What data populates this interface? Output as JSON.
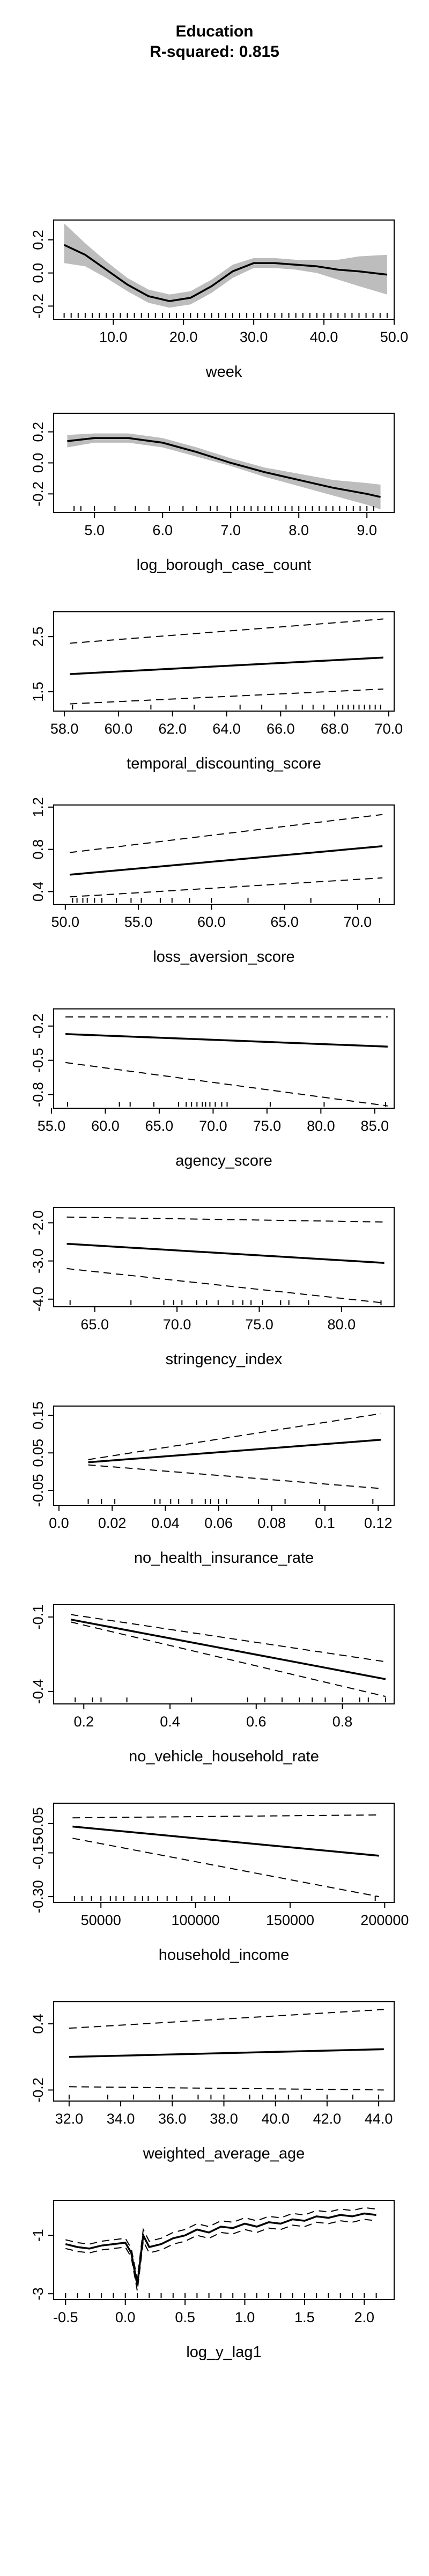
{
  "title": "Education",
  "subtitle": "R-squared: 0.815",
  "chart_data": [
    {
      "type": "line",
      "xlabel": "week",
      "xlim": [
        1.5,
        50
      ],
      "ylim": [
        -0.28,
        0.32
      ],
      "xticks": [
        10,
        20,
        30,
        40,
        50
      ],
      "yticks": [
        -0.2,
        0,
        0.2
      ],
      "yticklabels": [
        "-0.2",
        "0.0",
        "0.2"
      ],
      "band": "shaded",
      "x": [
        3,
        6,
        9,
        12,
        15,
        18,
        21,
        24,
        27,
        30,
        33,
        36,
        39,
        42,
        45,
        49
      ],
      "y": [
        0.17,
        0.11,
        0.02,
        -0.07,
        -0.14,
        -0.17,
        -0.15,
        -0.08,
        0.01,
        0.06,
        0.06,
        0.05,
        0.04,
        0.02,
        0.01,
        -0.01
      ],
      "lower": [
        0.06,
        0.04,
        -0.03,
        -0.11,
        -0.18,
        -0.21,
        -0.19,
        -0.12,
        -0.03,
        0.03,
        0.03,
        0.02,
        0.0,
        -0.04,
        -0.08,
        -0.13
      ],
      "upper": [
        0.3,
        0.18,
        0.07,
        -0.03,
        -0.1,
        -0.13,
        -0.11,
        -0.04,
        0.05,
        0.09,
        0.09,
        0.08,
        0.08,
        0.08,
        0.1,
        0.11
      ],
      "rug": [
        3,
        4,
        5,
        6,
        7,
        8,
        9,
        10,
        11,
        12,
        13,
        14,
        15,
        16,
        17,
        18,
        19,
        20,
        21,
        22,
        23,
        24,
        25,
        26,
        27,
        28,
        29,
        30,
        31,
        32,
        33,
        34,
        35,
        36,
        37,
        38,
        39,
        40,
        41,
        42,
        43,
        44,
        45,
        46,
        47,
        48,
        49
      ]
    },
    {
      "type": "line",
      "xlabel": "log_borough_case_count",
      "xlim": [
        4.4,
        9.4
      ],
      "ylim": [
        -0.32,
        0.32
      ],
      "xticks": [
        5,
        6,
        7,
        8,
        9
      ],
      "yticks": [
        -0.2,
        0,
        0.2
      ],
      "yticklabels": [
        "-0.2",
        "0.0",
        "0.2"
      ],
      "band": "shaded",
      "x": [
        4.6,
        5.0,
        5.5,
        6.0,
        6.5,
        7.0,
        7.5,
        8.0,
        8.5,
        9.0,
        9.2
      ],
      "y": [
        0.14,
        0.16,
        0.16,
        0.13,
        0.07,
        0.0,
        -0.06,
        -0.11,
        -0.16,
        -0.2,
        -0.22
      ],
      "lower": [
        0.1,
        0.13,
        0.13,
        0.1,
        0.04,
        -0.02,
        -0.09,
        -0.15,
        -0.21,
        -0.27,
        -0.3
      ],
      "upper": [
        0.18,
        0.19,
        0.19,
        0.16,
        0.1,
        0.03,
        -0.03,
        -0.07,
        -0.11,
        -0.13,
        -0.14
      ],
      "rug": [
        4.7,
        4.8,
        5.0,
        5.3,
        5.6,
        5.8,
        6.1,
        6.3,
        6.5,
        6.7,
        6.8,
        7.0,
        7.1,
        7.2,
        7.3,
        7.4,
        7.5,
        7.6,
        7.7,
        7.8,
        7.9,
        8.0,
        8.1,
        8.2,
        8.3,
        8.4,
        8.5,
        8.6,
        8.7,
        8.8,
        8.9,
        9.0,
        9.1
      ]
    },
    {
      "type": "line",
      "xlabel": "temporal_discounting_score",
      "xlim": [
        57.6,
        70.2
      ],
      "ylim": [
        1.15,
        2.95
      ],
      "xticks": [
        58,
        60,
        62,
        64,
        66,
        68,
        70
      ],
      "yticks": [
        1.5,
        2.5
      ],
      "yticklabels": [
        "1.5",
        "2.5"
      ],
      "band": "dashed",
      "x": [
        58.2,
        69.8
      ],
      "y": [
        1.82,
        2.12
      ],
      "lower": [
        1.28,
        1.55
      ],
      "upper": [
        2.38,
        2.82
      ],
      "rug": [
        58.3,
        61.2,
        62.8,
        64.5,
        65.3,
        66.2,
        66.8,
        67.2,
        67.6,
        68.1,
        68.3,
        68.5,
        68.7,
        68.9,
        69.1,
        69.3,
        69.5,
        69.7
      ]
    },
    {
      "type": "line",
      "xlabel": "loss_aversion_score",
      "xlim": [
        49.2,
        72.5
      ],
      "ylim": [
        0.28,
        1.22
      ],
      "xticks": [
        50,
        55,
        60,
        65,
        70
      ],
      "yticks": [
        0.4,
        0.8,
        1.2
      ],
      "yticklabels": [
        "0.4",
        "0.8",
        "1.2"
      ],
      "band": "dashed",
      "x": [
        50.3,
        71.7
      ],
      "y": [
        0.56,
        0.83
      ],
      "lower": [
        0.35,
        0.53
      ],
      "upper": [
        0.77,
        1.13
      ],
      "rug": [
        50.5,
        50.8,
        51.2,
        51.5,
        52.0,
        52.5,
        53.5,
        54.5,
        55.2,
        56.5,
        57.3,
        58.5,
        60.0,
        62.5,
        66.8,
        71.5
      ]
    },
    {
      "type": "line",
      "xlabel": "agency_score",
      "xlim": [
        55.2,
        86.8
      ],
      "ylim": [
        -0.92,
        -0.05
      ],
      "xticks": [
        55,
        60,
        65,
        70,
        75,
        80,
        85
      ],
      "yticks": [
        -0.2,
        -0.5,
        -0.8
      ],
      "yticklabels": [
        "-0.2",
        "-0.5",
        "-0.8"
      ],
      "band": "dashed",
      "x": [
        56.3,
        86.2
      ],
      "y": [
        -0.27,
        -0.38
      ],
      "lower": [
        -0.52,
        -0.9
      ],
      "upper": [
        -0.12,
        -0.12
      ],
      "rug": [
        56.5,
        61.3,
        62.3,
        64.5,
        66.8,
        67.5,
        68.0,
        68.5,
        69.0,
        69.3,
        69.7,
        70.2,
        70.8,
        71.3,
        75.3,
        80.3,
        86.0
      ]
    },
    {
      "type": "line",
      "xlabel": "stringency_index",
      "xlim": [
        62.5,
        83.2
      ],
      "ylim": [
        -4.2,
        -1.6
      ],
      "xticks": [
        65,
        70,
        75,
        80
      ],
      "yticks": [
        -2.0,
        -3.0,
        -4.0
      ],
      "yticklabels": [
        "-2.0",
        "-3.0",
        "-4.0"
      ],
      "band": "dashed",
      "x": [
        63.3,
        82.6
      ],
      "y": [
        -2.55,
        -3.05
      ],
      "lower": [
        -3.2,
        -4.1
      ],
      "upper": [
        -1.85,
        -1.98
      ],
      "rug": [
        63.5,
        67.2,
        69.2,
        69.8,
        70.3,
        71.2,
        71.8,
        72.5,
        73.4,
        74.0,
        74.5,
        75.2,
        76.3,
        76.8,
        78.0,
        82.4
      ]
    },
    {
      "type": "line",
      "xlabel": "no_health_insurance_rate",
      "xlim": [
        -0.002,
        0.126
      ],
      "ylim": [
        -0.09,
        0.175
      ],
      "xticks": [
        0.0,
        0.02,
        0.04,
        0.06,
        0.08,
        0.1,
        0.12
      ],
      "yticks": [
        -0.05,
        0.05,
        0.15
      ],
      "yticklabels": [
        "-0.05",
        "0.05",
        "0.15"
      ],
      "band": "dashed",
      "x": [
        0.011,
        0.121
      ],
      "y": [
        0.025,
        0.085
      ],
      "lower": [
        0.018,
        -0.045
      ],
      "upper": [
        0.032,
        0.155
      ],
      "rug": [
        0.011,
        0.016,
        0.021,
        0.036,
        0.038,
        0.042,
        0.045,
        0.05,
        0.055,
        0.057,
        0.06,
        0.063,
        0.075,
        0.085,
        0.098,
        0.118
      ]
    },
    {
      "type": "line",
      "xlabel": "no_vehicle_household_rate",
      "xlim": [
        0.13,
        0.92
      ],
      "ylim": [
        -0.45,
        -0.05
      ],
      "xticks": [
        0.2,
        0.4,
        0.6,
        0.8
      ],
      "yticks": [
        -0.1,
        -0.4
      ],
      "yticklabels": [
        "-0.1",
        "-0.4"
      ],
      "band": "dashed",
      "x": [
        0.17,
        0.9
      ],
      "y": [
        -0.11,
        -0.35
      ],
      "lower": [
        -0.12,
        -0.42
      ],
      "upper": [
        -0.09,
        -0.28
      ],
      "rug": [
        0.18,
        0.22,
        0.24,
        0.3,
        0.45,
        0.58,
        0.62,
        0.66,
        0.7,
        0.73,
        0.76,
        0.8,
        0.84,
        0.86,
        0.9
      ]
    },
    {
      "type": "line",
      "xlabel": "household_income",
      "xlim": [
        25000,
        205000
      ],
      "ylim": [
        -0.32,
        0.02
      ],
      "xticks": [
        50000,
        100000,
        150000,
        200000
      ],
      "yticks": [
        -0.05,
        -0.15,
        -0.3
      ],
      "yticklabels": [
        "-0.05",
        "-0.15",
        "-0.30"
      ],
      "band": "dashed",
      "x": [
        35000,
        197000
      ],
      "y": [
        -0.06,
        -0.16
      ],
      "lower": [
        -0.1,
        -0.3
      ],
      "upper": [
        -0.03,
        -0.02
      ],
      "rug": [
        36000,
        40000,
        45000,
        50000,
        55000,
        58000,
        62000,
        68000,
        72000,
        75000,
        80000,
        85000,
        90000,
        98000,
        105000,
        110000,
        118000,
        195000
      ]
    },
    {
      "type": "line",
      "xlabel": "weighted_average_age",
      "xlim": [
        31.4,
        44.6
      ],
      "ylim": [
        -0.3,
        0.6
      ],
      "xticks": [
        32,
        34,
        36,
        38,
        40,
        42,
        44
      ],
      "yticks": [
        -0.2,
        0.4
      ],
      "yticklabels": [
        "-0.2",
        "0.4"
      ],
      "band": "dashed",
      "x": [
        32.0,
        44.2
      ],
      "y": [
        0.1,
        0.17
      ],
      "lower": [
        -0.17,
        -0.2
      ],
      "upper": [
        0.36,
        0.53
      ],
      "rug": [
        32.0,
        33.5,
        34.5,
        35.5,
        36.0,
        37.0,
        37.5,
        38.0,
        39.0,
        39.5,
        40.0,
        40.5,
        41.0,
        42.0,
        43.0,
        44.0
      ]
    },
    {
      "type": "line",
      "xlabel": "log_y_lag1",
      "xlim": [
        -0.6,
        2.25
      ],
      "ylim": [
        -3.2,
        0.2
      ],
      "xticks": [
        -0.5,
        0.0,
        0.5,
        1.0,
        1.5,
        2.0
      ],
      "yticks": [
        -1,
        -3
      ],
      "yticklabels": [
        "-1",
        "-3"
      ],
      "band": "dashed",
      "x": [
        -0.5,
        -0.4,
        -0.3,
        -0.2,
        -0.1,
        0.0,
        0.05,
        0.1,
        0.15,
        0.2,
        0.3,
        0.4,
        0.5,
        0.6,
        0.7,
        0.8,
        0.9,
        1.0,
        1.1,
        1.2,
        1.3,
        1.4,
        1.5,
        1.6,
        1.7,
        1.8,
        1.9,
        2.0,
        2.1
      ],
      "y": [
        -1.3,
        -1.4,
        -1.45,
        -1.35,
        -1.3,
        -1.25,
        -1.6,
        -2.7,
        -1.0,
        -1.4,
        -1.3,
        -1.1,
        -1.0,
        -0.8,
        -0.9,
        -0.7,
        -0.75,
        -0.6,
        -0.7,
        -0.55,
        -0.6,
        -0.45,
        -0.5,
        -0.35,
        -0.4,
        -0.3,
        -0.35,
        -0.25,
        -0.3
      ],
      "lower": [
        -1.45,
        -1.55,
        -1.6,
        -1.5,
        -1.45,
        -1.4,
        -1.75,
        -2.9,
        -1.2,
        -1.6,
        -1.5,
        -1.3,
        -1.2,
        -1.0,
        -1.1,
        -0.9,
        -0.95,
        -0.8,
        -0.9,
        -0.75,
        -0.8,
        -0.65,
        -0.7,
        -0.55,
        -0.6,
        -0.5,
        -0.55,
        -0.45,
        -0.5
      ],
      "upper": [
        -1.15,
        -1.25,
        -1.3,
        -1.2,
        -1.15,
        -1.1,
        -1.45,
        -2.5,
        -0.8,
        -1.2,
        -1.1,
        -0.9,
        -0.8,
        -0.6,
        -0.7,
        -0.5,
        -0.55,
        -0.4,
        -0.5,
        -0.35,
        -0.4,
        -0.25,
        -0.3,
        -0.15,
        -0.2,
        -0.1,
        -0.15,
        -0.05,
        -0.1
      ],
      "rug": [
        -0.5,
        -0.4,
        -0.3,
        -0.2,
        -0.1,
        0.0,
        0.1,
        0.2,
        0.3,
        0.4,
        0.5,
        0.6,
        0.7,
        0.8,
        0.9,
        1.0,
        1.1,
        1.2,
        1.3,
        1.4,
        1.5,
        1.6,
        1.7,
        1.8,
        1.9,
        2.0,
        2.1
      ]
    }
  ]
}
